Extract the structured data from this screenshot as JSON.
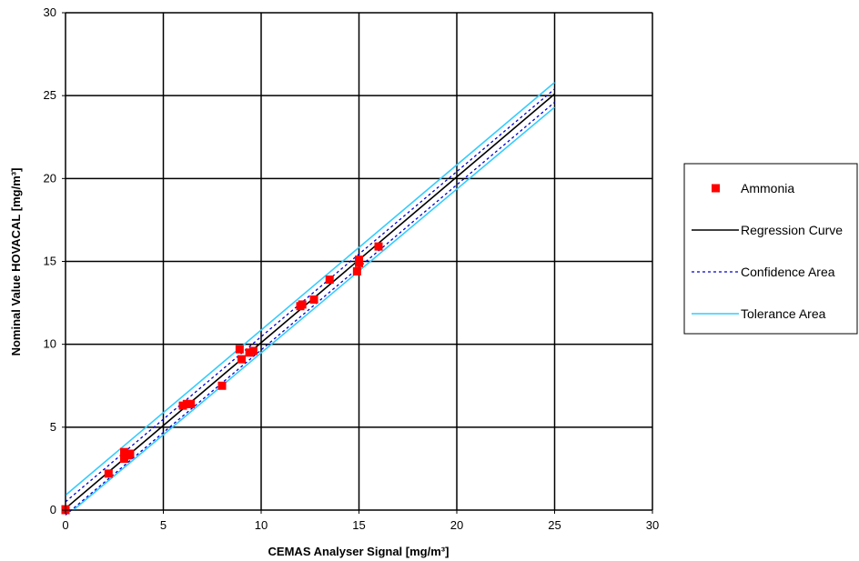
{
  "chart_data": {
    "type": "scatter",
    "xlabel": "CEMAS Analyser Signal [mg/m³]",
    "ylabel": "Nominal Value HOVACAL [mg/m³]",
    "xlim": [
      0,
      30
    ],
    "ylim": [
      0,
      30
    ],
    "xticks": [
      "0",
      "5",
      "10",
      "15",
      "20",
      "25",
      "30"
    ],
    "yticks": [
      "0",
      "5",
      "10",
      "15",
      "20",
      "25",
      "30"
    ],
    "grid": true,
    "legend_position": "right",
    "series": [
      {
        "name": "Ammonia",
        "kind": "marker",
        "color": "#ff0000",
        "x": [
          0,
          0,
          2.2,
          3.0,
          3.0,
          3.2,
          3.3,
          6.0,
          6.2,
          6.4,
          8.0,
          8.9,
          9.0,
          9.4,
          9.6,
          12.0,
          12.1,
          12.7,
          13.5,
          14.9,
          15.0,
          15.0,
          16.0
        ],
        "y": [
          0,
          0.05,
          2.2,
          3.1,
          3.5,
          3.3,
          3.4,
          6.3,
          6.4,
          6.4,
          7.5,
          9.7,
          9.1,
          9.5,
          9.6,
          12.3,
          12.4,
          12.7,
          13.9,
          14.4,
          14.9,
          15.1,
          15.9
        ]
      },
      {
        "name": "Regression Curve",
        "kind": "line",
        "color": "#000000",
        "style": "solid",
        "x": [
          0,
          25
        ],
        "y": [
          0.1,
          25.1
        ]
      },
      {
        "name": "Confidence Area",
        "kind": "line",
        "color": "#0000cc",
        "style": "dashed",
        "x": [
          0,
          25
        ],
        "y": [
          0.5,
          25.4
        ]
      },
      {
        "name": "",
        "kind": "line",
        "color": "#0000cc",
        "style": "dashed",
        "x": [
          0,
          25
        ],
        "y": [
          -0.3,
          24.6
        ]
      },
      {
        "name": "Tolerance Area",
        "kind": "line",
        "color": "#33ccff",
        "style": "solid",
        "x": [
          0,
          25
        ],
        "y": [
          0.9,
          25.8
        ]
      },
      {
        "name": "",
        "kind": "line",
        "color": "#33ccff",
        "style": "solid",
        "x": [
          0.4,
          25
        ],
        "y": [
          0,
          24.3
        ]
      }
    ]
  }
}
